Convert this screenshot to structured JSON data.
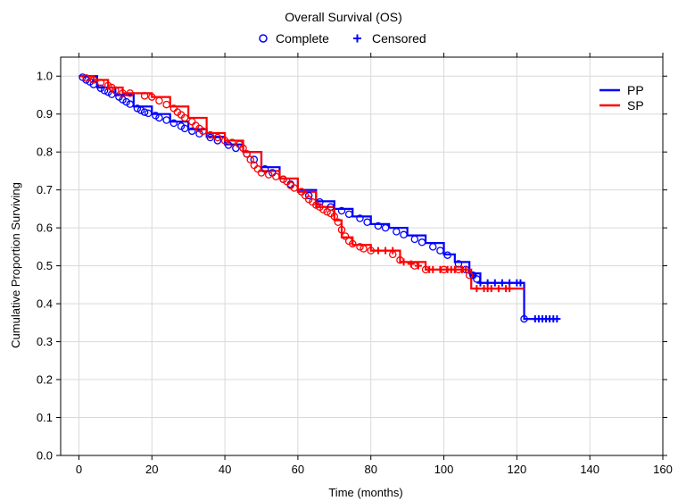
{
  "chart_data": {
    "type": "line",
    "title": "Overall Survival (OS)",
    "marker_legend": [
      {
        "label": "Complete",
        "marker": "circle"
      },
      {
        "label": "Censored",
        "marker": "plus"
      }
    ],
    "xlabel": "Time (months)",
    "ylabel": "Cumulative Proportion Surviving",
    "xlim": [
      -5,
      160
    ],
    "ylim": [
      0,
      1.05
    ],
    "x_ticks": [
      "0",
      "20",
      "40",
      "60",
      "80",
      "100",
      "120",
      "140",
      "160"
    ],
    "y_ticks": [
      "0.0",
      "0.1",
      "0.2",
      "0.3",
      "0.4",
      "0.5",
      "0.6",
      "0.7",
      "0.8",
      "0.9",
      "1.0"
    ],
    "grid": true,
    "legend_position": "top-right",
    "series": [
      {
        "name": "PP",
        "color": "#0000ff",
        "step_points": [
          [
            0,
            1.0
          ],
          [
            5,
            0.97
          ],
          [
            10,
            0.95
          ],
          [
            15,
            0.92
          ],
          [
            20,
            0.9
          ],
          [
            25,
            0.88
          ],
          [
            30,
            0.86
          ],
          [
            35,
            0.84
          ],
          [
            40,
            0.82
          ],
          [
            45,
            0.8
          ],
          [
            50,
            0.76
          ],
          [
            55,
            0.73
          ],
          [
            60,
            0.7
          ],
          [
            65,
            0.67
          ],
          [
            70,
            0.65
          ],
          [
            75,
            0.63
          ],
          [
            80,
            0.61
          ],
          [
            85,
            0.6
          ],
          [
            90,
            0.58
          ],
          [
            95,
            0.56
          ],
          [
            100,
            0.53
          ],
          [
            103,
            0.51
          ],
          [
            107,
            0.48
          ],
          [
            110,
            0.455
          ],
          [
            122,
            0.36
          ],
          [
            131,
            0.36
          ]
        ],
        "events": [
          [
            1,
            0.997
          ],
          [
            2,
            0.99
          ],
          [
            3,
            0.985
          ],
          [
            4,
            0.978
          ],
          [
            6,
            0.968
          ],
          [
            7,
            0.962
          ],
          [
            8,
            0.958
          ],
          [
            9,
            0.952
          ],
          [
            11,
            0.945
          ],
          [
            12,
            0.938
          ],
          [
            13,
            0.932
          ],
          [
            14,
            0.926
          ],
          [
            16,
            0.915
          ],
          [
            17,
            0.91
          ],
          [
            18,
            0.905
          ],
          [
            19,
            0.902
          ],
          [
            21,
            0.896
          ],
          [
            22,
            0.89
          ],
          [
            24,
            0.884
          ],
          [
            26,
            0.876
          ],
          [
            28,
            0.868
          ],
          [
            29,
            0.862
          ],
          [
            31,
            0.855
          ],
          [
            33,
            0.848
          ],
          [
            36,
            0.838
          ],
          [
            38,
            0.83
          ],
          [
            41,
            0.818
          ],
          [
            43,
            0.81
          ],
          [
            46,
            0.795
          ],
          [
            48,
            0.78
          ],
          [
            51,
            0.755
          ],
          [
            53,
            0.745
          ],
          [
            56,
            0.728
          ],
          [
            58,
            0.715
          ],
          [
            61,
            0.695
          ],
          [
            63,
            0.685
          ],
          [
            66,
            0.668
          ],
          [
            69,
            0.655
          ],
          [
            72,
            0.645
          ],
          [
            74,
            0.636
          ],
          [
            77,
            0.625
          ],
          [
            79,
            0.615
          ],
          [
            82,
            0.605
          ],
          [
            84,
            0.6
          ],
          [
            87,
            0.59
          ],
          [
            89,
            0.582
          ],
          [
            92,
            0.57
          ],
          [
            94,
            0.562
          ],
          [
            97,
            0.55
          ],
          [
            99,
            0.54
          ],
          [
            101,
            0.528
          ],
          [
            104,
            0.505
          ],
          [
            106,
            0.49
          ],
          [
            108,
            0.475
          ],
          [
            109,
            0.465
          ],
          [
            122,
            0.36
          ]
        ],
        "censored": [
          [
            108,
            0.475
          ],
          [
            110,
            0.455
          ],
          [
            112,
            0.455
          ],
          [
            114,
            0.455
          ],
          [
            116,
            0.455
          ],
          [
            118,
            0.455
          ],
          [
            120,
            0.455
          ],
          [
            121,
            0.455
          ],
          [
            125,
            0.36
          ],
          [
            126,
            0.36
          ],
          [
            127,
            0.36
          ],
          [
            128,
            0.36
          ],
          [
            129,
            0.36
          ],
          [
            130,
            0.36
          ],
          [
            131,
            0.36
          ]
        ]
      },
      {
        "name": "SP",
        "color": "#ff0000",
        "step_points": [
          [
            0,
            1.0
          ],
          [
            4,
            0.99
          ],
          [
            8,
            0.97
          ],
          [
            12,
            0.955
          ],
          [
            20,
            0.945
          ],
          [
            25,
            0.92
          ],
          [
            30,
            0.89
          ],
          [
            35,
            0.85
          ],
          [
            40,
            0.83
          ],
          [
            45,
            0.8
          ],
          [
            50,
            0.75
          ],
          [
            55,
            0.73
          ],
          [
            60,
            0.695
          ],
          [
            65,
            0.655
          ],
          [
            70,
            0.62
          ],
          [
            72,
            0.575
          ],
          [
            75,
            0.555
          ],
          [
            80,
            0.54
          ],
          [
            85,
            0.54
          ],
          [
            88,
            0.51
          ],
          [
            95,
            0.49
          ],
          [
            100,
            0.49
          ],
          [
            107,
            0.49
          ],
          [
            107.5,
            0.44
          ],
          [
            122,
            0.44
          ]
        ],
        "events": [
          [
            2,
            0.995
          ],
          [
            4,
            0.99
          ],
          [
            6,
            0.983
          ],
          [
            8,
            0.975
          ],
          [
            9,
            0.97
          ],
          [
            10,
            0.962
          ],
          [
            12,
            0.955
          ],
          [
            14,
            0.955
          ],
          [
            18,
            0.948
          ],
          [
            20,
            0.945
          ],
          [
            22,
            0.935
          ],
          [
            24,
            0.925
          ],
          [
            26,
            0.915
          ],
          [
            27,
            0.905
          ],
          [
            28,
            0.898
          ],
          [
            29,
            0.89
          ],
          [
            31,
            0.88
          ],
          [
            32,
            0.87
          ],
          [
            33,
            0.862
          ],
          [
            34,
            0.855
          ],
          [
            36,
            0.845
          ],
          [
            38,
            0.838
          ],
          [
            40,
            0.83
          ],
          [
            42,
            0.825
          ],
          [
            44,
            0.82
          ],
          [
            45,
            0.81
          ],
          [
            46,
            0.795
          ],
          [
            47,
            0.78
          ],
          [
            48,
            0.765
          ],
          [
            49,
            0.755
          ],
          [
            50,
            0.745
          ],
          [
            52,
            0.74
          ],
          [
            54,
            0.735
          ],
          [
            56,
            0.728
          ],
          [
            57,
            0.722
          ],
          [
            58,
            0.712
          ],
          [
            59,
            0.705
          ],
          [
            61,
            0.695
          ],
          [
            62,
            0.685
          ],
          [
            63,
            0.675
          ],
          [
            64,
            0.668
          ],
          [
            65,
            0.66
          ],
          [
            66,
            0.655
          ],
          [
            67,
            0.648
          ],
          [
            68,
            0.642
          ],
          [
            69,
            0.638
          ],
          [
            70,
            0.63
          ],
          [
            71,
            0.615
          ],
          [
            72,
            0.595
          ],
          [
            73,
            0.578
          ],
          [
            74,
            0.565
          ],
          [
            75,
            0.558
          ],
          [
            77,
            0.55
          ],
          [
            78,
            0.545
          ],
          [
            80,
            0.54
          ],
          [
            86,
            0.53
          ],
          [
            88,
            0.515
          ],
          [
            92,
            0.5
          ],
          [
            95,
            0.49
          ],
          [
            100,
            0.49
          ],
          [
            104,
            0.49
          ],
          [
            107,
            0.475
          ]
        ],
        "censored": [
          [
            82,
            0.54
          ],
          [
            84,
            0.54
          ],
          [
            86,
            0.54
          ],
          [
            89,
            0.51
          ],
          [
            91,
            0.505
          ],
          [
            93,
            0.5
          ],
          [
            96,
            0.49
          ],
          [
            97,
            0.49
          ],
          [
            99,
            0.49
          ],
          [
            101,
            0.49
          ],
          [
            102,
            0.49
          ],
          [
            103,
            0.49
          ],
          [
            105,
            0.49
          ],
          [
            106,
            0.49
          ],
          [
            109,
            0.44
          ],
          [
            111,
            0.44
          ],
          [
            112,
            0.44
          ],
          [
            113,
            0.44
          ],
          [
            115,
            0.44
          ],
          [
            117,
            0.44
          ],
          [
            118,
            0.44
          ]
        ]
      }
    ]
  }
}
